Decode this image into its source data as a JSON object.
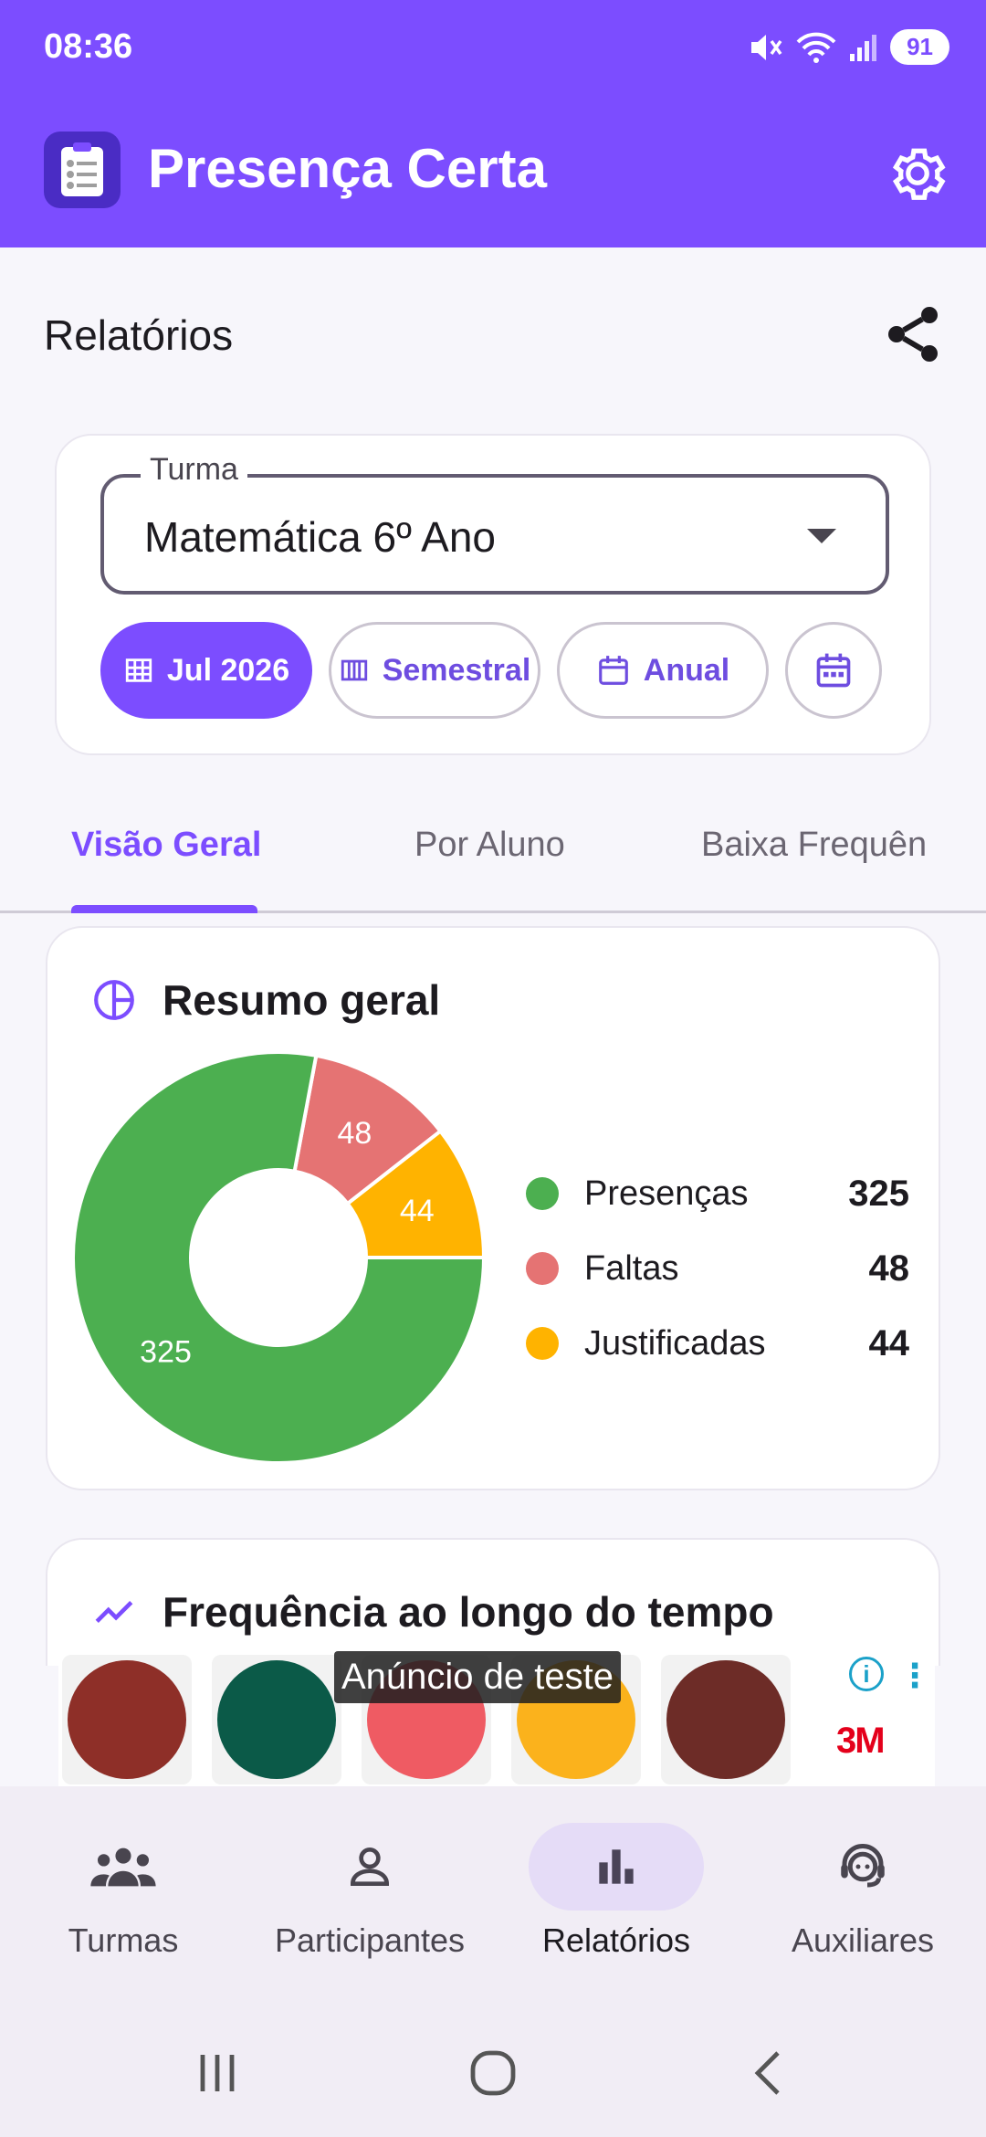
{
  "status_bar": {
    "time": "08:36",
    "battery": "91"
  },
  "app_bar": {
    "title": "Presença Certa"
  },
  "page": {
    "title": "Relatórios"
  },
  "filter": {
    "label": "Turma",
    "value": "Matemática 6º Ano",
    "chips": [
      {
        "label": "Jul 2026",
        "icon": "grid-calendar-icon",
        "active": true
      },
      {
        "label": "Semestral",
        "icon": "columns-icon",
        "active": false
      },
      {
        "label": "Anual",
        "icon": "calendar-icon",
        "active": false
      },
      {
        "label": "",
        "icon": "calendar-month-icon",
        "active": false
      }
    ]
  },
  "tabs": [
    {
      "label": "Visão Geral",
      "active": true
    },
    {
      "label": "Por Aluno",
      "active": false
    },
    {
      "label": "Baixa Frequên",
      "active": false
    }
  ],
  "summary": {
    "title": "Resumo geral",
    "icon": "pie-chart-icon"
  },
  "chart_data": {
    "type": "pie",
    "title": "Resumo geral",
    "donut": true,
    "categories": [
      "Presenças",
      "Faltas",
      "Justificadas"
    ],
    "values": [
      325,
      48,
      44
    ],
    "colors": [
      "#4caf50",
      "#e57373",
      "#ffb300"
    ],
    "data_labels": [
      "325",
      "48",
      "44"
    ],
    "legend_placement": "right"
  },
  "timeline": {
    "title": "Frequência ao longo do tempo",
    "icon": "trending-up-icon"
  },
  "ad": {
    "label": "Anúncio de teste",
    "brand": "3M",
    "info_glyph": "i",
    "more_glyph": "⋮",
    "tile_colors": [
      "#8e2f28",
      "#0b5a48",
      "#ef5b63",
      "#fbb21c",
      "#6d2c27"
    ]
  },
  "bottom_nav": [
    {
      "label": "Turmas",
      "icon": "groups-icon",
      "active": false
    },
    {
      "label": "Participantes",
      "icon": "person-icon",
      "active": false
    },
    {
      "label": "Relatórios",
      "icon": "bar-chart-icon",
      "active": true
    },
    {
      "label": "Auxiliares",
      "icon": "support-agent-icon",
      "active": false
    }
  ],
  "colors": {
    "primary": "#7c4dff",
    "surface": "#f7f6fb",
    "nav_bg": "#f1edf5"
  }
}
